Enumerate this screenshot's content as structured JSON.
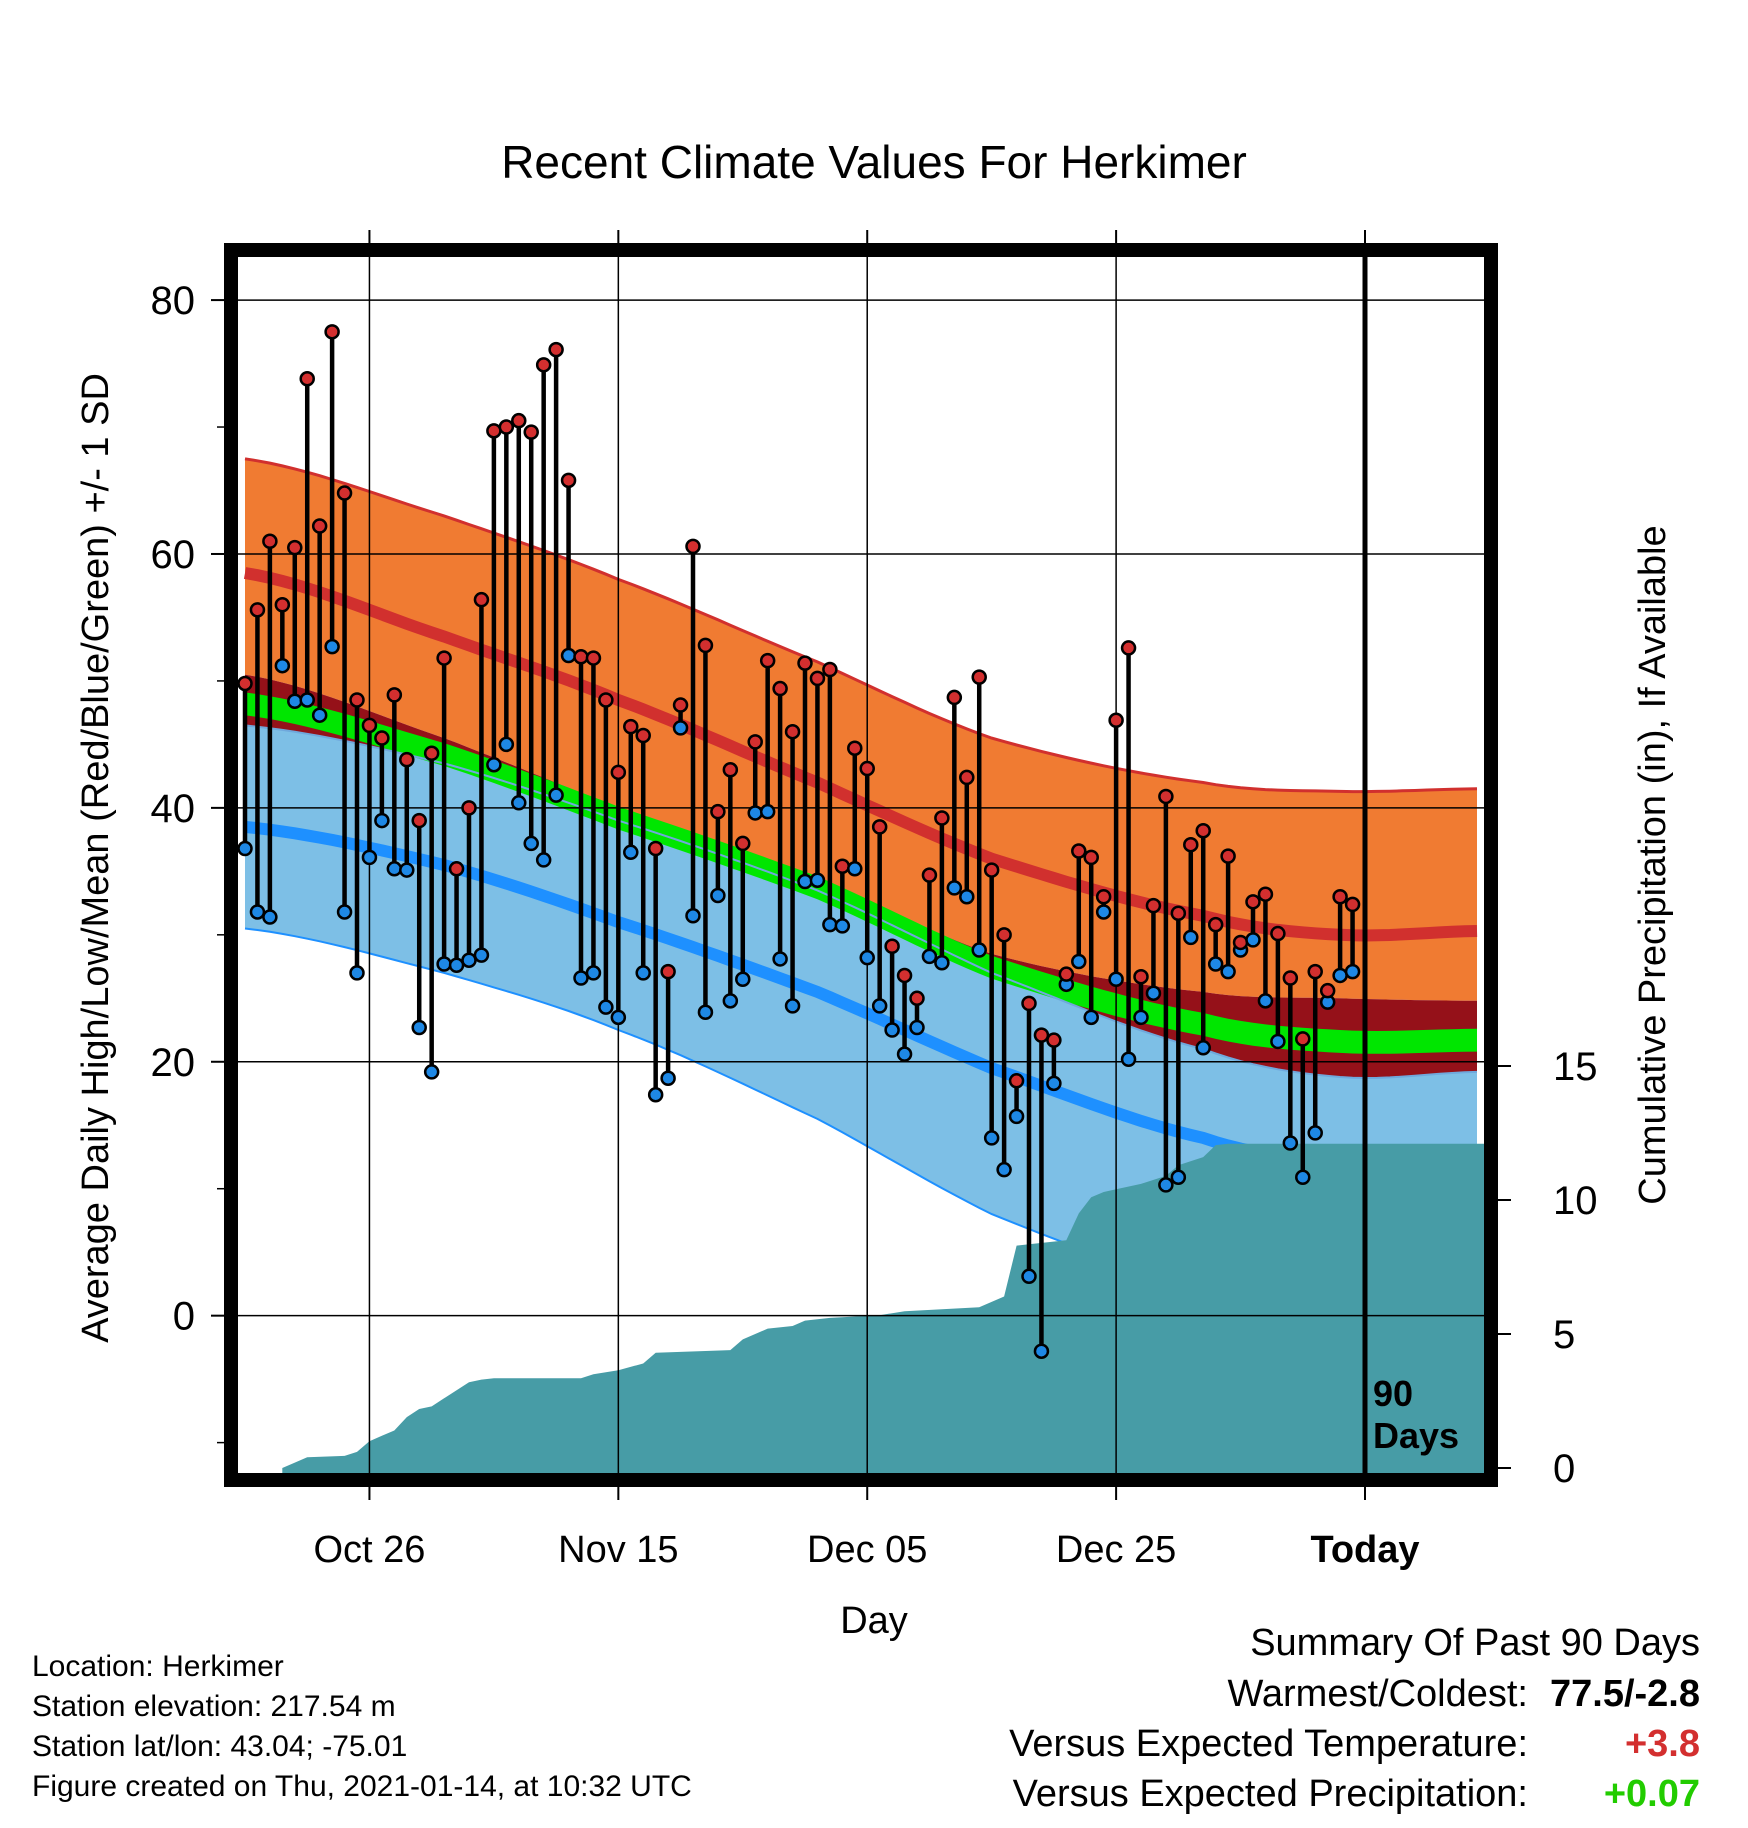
{
  "chart_data": {
    "type": "line",
    "title": "Recent Climate Values For Herkimer",
    "xlabel": "Day",
    "ylabel": "Average Daily High/Low/Mean (Red/Blue/Green) +/- 1 SD",
    "y2label": "Cumulative Precipitation (in), If Available",
    "x_ticks": [
      "Oct 26",
      "Nov 15",
      "Dec 05",
      "Dec 25",
      "Today"
    ],
    "x_tick_dates": [
      "2020-10-26",
      "2020-11-15",
      "2020-12-05",
      "2020-12-25",
      "2021-01-14"
    ],
    "x_range": [
      "2020-10-16",
      "2021-01-23"
    ],
    "y_ticks": [
      0,
      20,
      40,
      60,
      80
    ],
    "ylim": [
      -12,
      83
    ],
    "y2_ticks": [
      0,
      5,
      10,
      15
    ],
    "y2lim": [
      0,
      45
    ],
    "marker_label": [
      "90",
      "Days"
    ],
    "grid": true,
    "colors": {
      "high_band": "#f07b32",
      "high_line": "#d1302e",
      "low_band": "#7dbfe6",
      "low_line": "#1e90ff",
      "mean_band": "#00e600",
      "warm_region": "#951119",
      "precip": "#479ca6",
      "high_dot": "#d32f2f",
      "low_dot": "#1e88e5"
    },
    "normals": {
      "x": [
        "2020-10-16",
        "2020-11-01",
        "2020-11-15",
        "2020-12-01",
        "2020-12-15",
        "2021-01-01",
        "2021-01-12",
        "2021-01-23"
      ],
      "high_mean": [
        58.5,
        53.5,
        48.5,
        42,
        36,
        31.5,
        30,
        30.3
      ],
      "high_upper": [
        67.5,
        63,
        58,
        51.5,
        45.5,
        42,
        41.3,
        41.5
      ],
      "high_lower": [
        50.5,
        45.5,
        40,
        34.5,
        28.5,
        25.5,
        25,
        24.8
      ],
      "low_mean": [
        38.5,
        35.5,
        31,
        25.5,
        19.5,
        14,
        12,
        11.5
      ],
      "low_upper": [
        46.5,
        43.5,
        39,
        33.5,
        27,
        21,
        18.8,
        19.2
      ],
      "low_lower": [
        30.5,
        27,
        22.5,
        15.5,
        8,
        2,
        -2,
        -2
      ]
    },
    "series": [
      {
        "name": "High",
        "x": [
          "2020-10-16",
          "2020-10-17",
          "2020-10-18",
          "2020-10-19",
          "2020-10-20",
          "2020-10-21",
          "2020-10-22",
          "2020-10-23",
          "2020-10-24",
          "2020-10-25",
          "2020-10-26",
          "2020-10-27",
          "2020-10-28",
          "2020-10-29",
          "2020-10-30",
          "2020-10-31",
          "2020-11-01",
          "2020-11-02",
          "2020-11-03",
          "2020-11-04",
          "2020-11-05",
          "2020-11-06",
          "2020-11-07",
          "2020-11-08",
          "2020-11-09",
          "2020-11-10",
          "2020-11-11",
          "2020-11-12",
          "2020-11-13",
          "2020-11-14",
          "2020-11-15",
          "2020-11-16",
          "2020-11-17",
          "2020-11-18",
          "2020-11-19",
          "2020-11-20",
          "2020-11-21",
          "2020-11-22",
          "2020-11-23",
          "2020-11-24",
          "2020-11-25",
          "2020-11-26",
          "2020-11-27",
          "2020-11-28",
          "2020-11-29",
          "2020-11-30",
          "2020-12-01",
          "2020-12-02",
          "2020-12-03",
          "2020-12-04",
          "2020-12-05",
          "2020-12-06",
          "2020-12-07",
          "2020-12-08",
          "2020-12-09",
          "2020-12-10",
          "2020-12-11",
          "2020-12-12",
          "2020-12-13",
          "2020-12-14",
          "2020-12-15",
          "2020-12-16",
          "2020-12-17",
          "2020-12-18",
          "2020-12-19",
          "2020-12-20",
          "2020-12-21",
          "2020-12-22",
          "2020-12-23",
          "2020-12-24",
          "2020-12-25",
          "2020-12-26",
          "2020-12-27",
          "2020-12-28",
          "2020-12-29",
          "2020-12-30",
          "2020-12-31",
          "2021-01-01",
          "2021-01-02",
          "2021-01-03",
          "2021-01-04",
          "2021-01-05",
          "2021-01-06",
          "2021-01-07",
          "2021-01-08",
          "2021-01-09",
          "2021-01-10",
          "2021-01-11",
          "2021-01-12",
          "2021-01-13"
        ],
        "values": [
          49.8,
          55.6,
          61,
          56,
          60.5,
          73.8,
          62.2,
          77.5,
          64.8,
          48.5,
          46.5,
          45.5,
          48.9,
          43.8,
          39,
          44.3,
          51.8,
          35.2,
          40,
          56.4,
          69.7,
          70,
          70.5,
          69.6,
          74.9,
          76.1,
          65.8,
          51.9,
          51.8,
          48.5,
          42.8,
          46.4,
          45.7,
          36.8,
          27.1,
          48.1,
          60.6,
          52.8,
          39.7,
          43,
          37.2,
          45.2,
          51.6,
          49.4,
          46,
          51.4,
          50.2,
          50.9,
          35.4,
          44.7,
          43.1,
          38.5,
          29.1,
          26.8,
          25,
          34.7,
          39.2,
          48.7,
          42.4,
          50.3,
          35.1,
          30,
          18.5,
          24.6,
          22.1,
          21.7,
          26.9,
          36.6,
          36.1,
          33,
          46.9,
          52.6,
          26.7,
          32.3,
          40.9,
          31.7,
          37.1,
          38.2,
          30.8,
          36.2,
          29.4,
          32.6,
          33.2,
          30.1,
          26.6,
          21.8,
          27.1,
          25.6,
          33,
          32.4
        ]
      },
      {
        "name": "Low",
        "x": [
          "2020-10-16",
          "2020-10-17",
          "2020-10-18",
          "2020-10-19",
          "2020-10-20",
          "2020-10-21",
          "2020-10-22",
          "2020-10-23",
          "2020-10-24",
          "2020-10-25",
          "2020-10-26",
          "2020-10-27",
          "2020-10-28",
          "2020-10-29",
          "2020-10-30",
          "2020-10-31",
          "2020-11-01",
          "2020-11-02",
          "2020-11-03",
          "2020-11-04",
          "2020-11-05",
          "2020-11-06",
          "2020-11-07",
          "2020-11-08",
          "2020-11-09",
          "2020-11-10",
          "2020-11-11",
          "2020-11-12",
          "2020-11-13",
          "2020-11-14",
          "2020-11-15",
          "2020-11-16",
          "2020-11-17",
          "2020-11-18",
          "2020-11-19",
          "2020-11-20",
          "2020-11-21",
          "2020-11-22",
          "2020-11-23",
          "2020-11-24",
          "2020-11-25",
          "2020-11-26",
          "2020-11-27",
          "2020-11-28",
          "2020-11-29",
          "2020-11-30",
          "2020-12-01",
          "2020-12-02",
          "2020-12-03",
          "2020-12-04",
          "2020-12-05",
          "2020-12-06",
          "2020-12-07",
          "2020-12-08",
          "2020-12-09",
          "2020-12-10",
          "2020-12-11",
          "2020-12-12",
          "2020-12-13",
          "2020-12-14",
          "2020-12-15",
          "2020-12-16",
          "2020-12-17",
          "2020-12-18",
          "2020-12-19",
          "2020-12-20",
          "2020-12-21",
          "2020-12-22",
          "2020-12-23",
          "2020-12-24",
          "2020-12-25",
          "2020-12-26",
          "2020-12-27",
          "2020-12-28",
          "2020-12-29",
          "2020-12-30",
          "2020-12-31",
          "2021-01-01",
          "2021-01-02",
          "2021-01-03",
          "2021-01-04",
          "2021-01-05",
          "2021-01-06",
          "2021-01-07",
          "2021-01-08",
          "2021-01-09",
          "2021-01-10",
          "2021-01-11",
          "2021-01-12",
          "2021-01-13"
        ],
        "values": [
          36.8,
          31.8,
          31.4,
          51.2,
          48.4,
          48.5,
          47.3,
          52.7,
          31.8,
          27,
          36.1,
          39,
          35.2,
          35.1,
          22.7,
          19.2,
          27.7,
          27.6,
          28,
          28.4,
          43.4,
          45,
          40.4,
          37.2,
          35.9,
          41,
          52,
          26.6,
          27,
          24.3,
          23.5,
          36.5,
          27,
          17.4,
          18.7,
          46.3,
          31.5,
          23.9,
          33.1,
          24.8,
          26.5,
          39.6,
          39.7,
          28.1,
          24.4,
          34.2,
          34.3,
          30.8,
          30.7,
          35.2,
          28.2,
          24.4,
          22.5,
          20.6,
          22.7,
          28.3,
          27.8,
          33.7,
          33,
          28.8,
          14,
          11.5,
          15.7,
          3.1,
          -2.8,
          18.3,
          26.1,
          27.9,
          23.5,
          31.8,
          26.5,
          20.2,
          23.5,
          25.4,
          10.3,
          10.9,
          29.8,
          21.1,
          27.7,
          27.1,
          28.8,
          29.6,
          24.8,
          21.6,
          13.6,
          10.9,
          14.4,
          24.7,
          26.8,
          27.1
        ]
      },
      {
        "name": "Cumulative Precipitation",
        "x": [
          "2020-10-19",
          "2020-10-20",
          "2020-10-21",
          "2020-10-24",
          "2020-10-25",
          "2020-10-26",
          "2020-10-27",
          "2020-10-28",
          "2020-10-29",
          "2020-10-30",
          "2020-10-31",
          "2020-11-01",
          "2020-11-02",
          "2020-11-03",
          "2020-11-04",
          "2020-11-05",
          "2020-11-12",
          "2020-11-13",
          "2020-11-15",
          "2020-11-17",
          "2020-11-18",
          "2020-11-24",
          "2020-11-25",
          "2020-11-27",
          "2020-11-29",
          "2020-11-30",
          "2020-12-02",
          "2020-12-06",
          "2020-12-08",
          "2020-12-14",
          "2020-12-16",
          "2020-12-17",
          "2020-12-18",
          "2020-12-21",
          "2020-12-22",
          "2020-12-23",
          "2020-12-24",
          "2020-12-25",
          "2020-12-27",
          "2020-12-29",
          "2020-12-30",
          "2021-01-01",
          "2021-01-02",
          "2021-01-03",
          "2021-01-23"
        ],
        "values": [
          0,
          0.2,
          0.4,
          0.45,
          0.6,
          1,
          1.2,
          1.4,
          1.9,
          2.2,
          2.3,
          2.6,
          2.9,
          3.2,
          3.3,
          3.35,
          3.35,
          3.5,
          3.65,
          3.9,
          4.3,
          4.4,
          4.8,
          5.2,
          5.3,
          5.5,
          5.6,
          5.7,
          5.85,
          6.0,
          6.4,
          8.3,
          8.35,
          8.5,
          9.5,
          10.1,
          10.3,
          10.4,
          10.6,
          10.9,
          11.3,
          11.6,
          12.05,
          12.1,
          12.1
        ]
      }
    ]
  },
  "footer": {
    "location": "Location: Herkimer",
    "elevation": "Station elevation: 217.54 m",
    "latlon": "Station lat/lon: 43.04; -75.01",
    "created": "Figure created on Thu, 2021-01-14, at 10:32 UTC"
  },
  "summary": {
    "title": "Summary Of Past 90 Days",
    "warmest_label": "Warmest/Coldest:",
    "warmest_value": "77.5/-2.8",
    "temp_label": "Versus Expected Temperature:",
    "temp_value": "+3.8",
    "temp_color": "#d32f2f",
    "precip_label": "Versus Expected Precipitation:",
    "precip_value": "+0.07",
    "precip_color": "#22cc00"
  }
}
